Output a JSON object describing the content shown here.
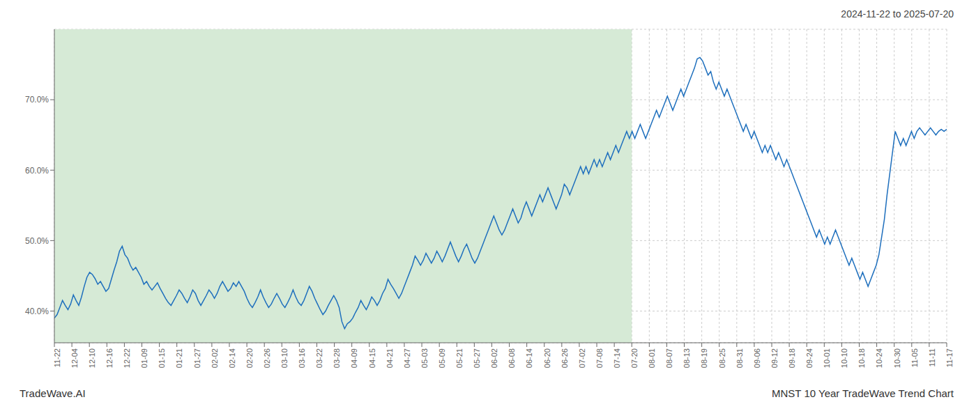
{
  "chart_data": {
    "type": "line",
    "title": "2024-11-22 to 2025-07-20",
    "footer_left": "TradeWave.AI",
    "footer_right": "MNST 10 Year TradeWave Trend Chart",
    "color": "#1e6fbd",
    "grid": true,
    "ylim": [
      35.5,
      80.0
    ],
    "yticks": [
      {
        "value": 40.0,
        "label": "40.0%"
      },
      {
        "value": 50.0,
        "label": "50.0%"
      },
      {
        "value": 60.0,
        "label": "60.0%"
      },
      {
        "value": 70.0,
        "label": "70.0%"
      }
    ],
    "x_tick_labels": [
      "11-22",
      "12-04",
      "12-10",
      "12-16",
      "12-22",
      "01-09",
      "01-15",
      "01-21",
      "01-27",
      "02-02",
      "02-14",
      "02-20",
      "02-26",
      "03-10",
      "03-16",
      "03-22",
      "03-28",
      "04-09",
      "04-15",
      "04-21",
      "04-27",
      "05-03",
      "05-09",
      "05-21",
      "05-27",
      "06-02",
      "06-08",
      "06-14",
      "06-20",
      "06-26",
      "07-02",
      "07-08",
      "07-14",
      "07-20",
      "08-01",
      "08-07",
      "08-13",
      "08-19",
      "08-25",
      "08-31",
      "09-06",
      "09-12",
      "09-18",
      "09-24",
      "10-01",
      "10-10",
      "10-18",
      "10-24",
      "10-30",
      "11-05",
      "11-11",
      "11-17"
    ],
    "shade": {
      "to_label": "07-20",
      "color": "#d6ead6"
    },
    "values": [
      39.0,
      39.5,
      40.5,
      41.5,
      40.8,
      40.2,
      41.0,
      42.3,
      41.5,
      40.8,
      42.0,
      43.5,
      44.8,
      45.5,
      45.2,
      44.6,
      43.8,
      44.2,
      43.5,
      42.8,
      43.2,
      44.5,
      45.8,
      47.0,
      48.5,
      49.2,
      48.0,
      47.5,
      46.5,
      45.8,
      46.2,
      45.5,
      44.8,
      43.8,
      44.2,
      43.5,
      43.0,
      43.5,
      44.0,
      43.2,
      42.5,
      41.8,
      41.2,
      40.8,
      41.5,
      42.2,
      43.0,
      42.5,
      41.8,
      41.2,
      42.0,
      43.0,
      42.5,
      41.5,
      40.8,
      41.5,
      42.2,
      43.0,
      42.5,
      41.8,
      42.5,
      43.5,
      44.2,
      43.5,
      42.8,
      43.2,
      44.0,
      43.5,
      44.2,
      43.5,
      42.8,
      41.8,
      41.0,
      40.5,
      41.2,
      42.0,
      43.0,
      42.0,
      41.2,
      40.5,
      41.0,
      41.8,
      42.5,
      41.8,
      41.0,
      40.5,
      41.2,
      42.0,
      43.0,
      42.0,
      41.2,
      40.8,
      41.5,
      42.5,
      43.5,
      42.8,
      41.8,
      41.0,
      40.2,
      39.5,
      40.0,
      40.8,
      41.5,
      42.2,
      41.5,
      40.5,
      38.5,
      37.5,
      38.2,
      38.5,
      39.0,
      39.8,
      40.5,
      41.5,
      40.8,
      40.2,
      41.0,
      42.0,
      41.5,
      40.8,
      41.5,
      42.5,
      43.2,
      44.5,
      43.8,
      43.2,
      42.5,
      41.8,
      42.5,
      43.5,
      44.5,
      45.5,
      46.5,
      47.8,
      47.2,
      46.5,
      47.2,
      48.2,
      47.5,
      46.8,
      47.5,
      48.5,
      47.8,
      47.0,
      47.8,
      48.8,
      49.8,
      48.8,
      47.8,
      47.0,
      47.8,
      48.8,
      49.5,
      48.5,
      47.5,
      46.8,
      47.5,
      48.5,
      49.5,
      50.5,
      51.5,
      52.5,
      53.5,
      52.5,
      51.5,
      50.8,
      51.5,
      52.5,
      53.5,
      54.5,
      53.5,
      52.5,
      53.2,
      54.5,
      55.5,
      54.5,
      53.5,
      54.5,
      55.5,
      56.5,
      55.5,
      56.5,
      57.5,
      56.5,
      55.5,
      54.5,
      55.5,
      56.5,
      58.0,
      57.5,
      56.5,
      57.5,
      58.5,
      59.5,
      60.5,
      59.5,
      60.5,
      59.5,
      60.5,
      61.5,
      60.5,
      61.5,
      60.5,
      61.5,
      62.5,
      61.5,
      62.5,
      63.5,
      62.5,
      63.5,
      64.5,
      65.5,
      64.5,
      65.5,
      64.5,
      65.5,
      66.5,
      65.5,
      64.5,
      65.5,
      66.5,
      67.5,
      68.5,
      67.5,
      68.5,
      69.5,
      70.5,
      69.5,
      68.5,
      69.5,
      70.5,
      71.5,
      70.5,
      71.5,
      72.5,
      73.5,
      74.5,
      75.8,
      76.0,
      75.5,
      74.5,
      73.5,
      74.0,
      72.5,
      71.5,
      72.5,
      71.5,
      70.5,
      71.5,
      70.5,
      69.5,
      68.5,
      67.5,
      66.5,
      65.5,
      66.5,
      65.5,
      64.5,
      65.5,
      64.5,
      63.5,
      62.5,
      63.5,
      62.5,
      63.5,
      62.5,
      61.5,
      62.5,
      61.5,
      60.5,
      61.5,
      60.5,
      59.5,
      58.5,
      57.5,
      56.5,
      55.5,
      54.5,
      53.5,
      52.5,
      51.5,
      50.5,
      51.5,
      50.5,
      49.5,
      50.5,
      49.5,
      50.5,
      51.5,
      50.5,
      49.5,
      48.5,
      47.5,
      46.5,
      47.5,
      46.5,
      45.5,
      44.5,
      45.5,
      44.5,
      43.5,
      44.5,
      45.5,
      46.5,
      48.0,
      50.5,
      53.0,
      56.5,
      59.5,
      62.5,
      65.5,
      64.5,
      63.5,
      64.5,
      63.5,
      64.5,
      65.5,
      64.5,
      65.5,
      66.0,
      65.5,
      65.0,
      65.5,
      66.0,
      65.5,
      65.0,
      65.5,
      65.8,
      65.5,
      65.8
    ]
  }
}
